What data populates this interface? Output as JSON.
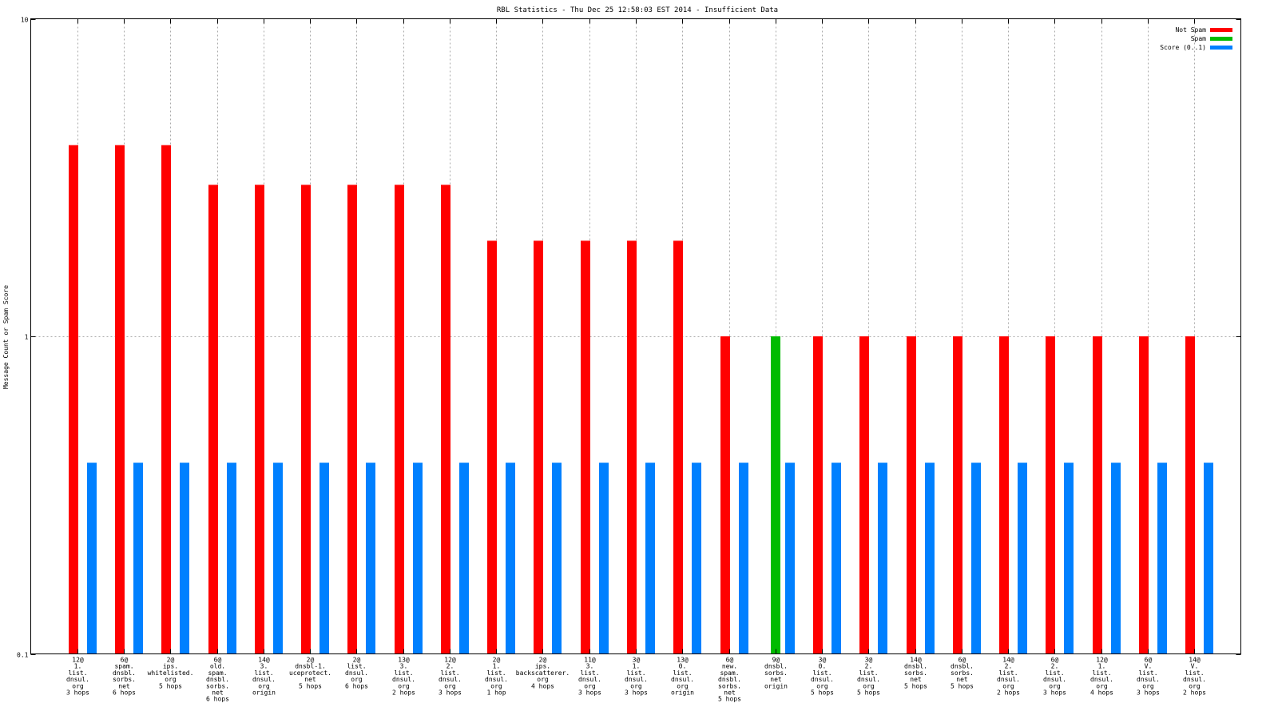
{
  "chart_data": {
    "type": "bar",
    "title": "RBL Statistics - Thu Dec 25 12:58:03 EST 2014 - Insufficient Data",
    "xlabel": "",
    "ylabel": "Message Count or Spam Score",
    "yscale": "log",
    "ylim": [
      0.1,
      10
    ],
    "yticks": [
      "0.1",
      "1",
      "10"
    ],
    "grid": true,
    "legend_position": "top-right",
    "categories": [
      [
        "12@",
        "1.",
        "list.",
        "dnsul.",
        "org",
        "3 hops"
      ],
      [
        "6@",
        "spam.",
        "dnsbl.",
        "sorbs.",
        "net",
        "6 hops"
      ],
      [
        "2@",
        "ips.",
        "whitelisted.",
        "org",
        "5 hops"
      ],
      [
        "6@",
        "old.",
        "spam.",
        "dnsbl.",
        "sorbs.",
        "net",
        "6 hops"
      ],
      [
        "14@",
        "3.",
        "list.",
        "dnsul.",
        "org",
        "origin"
      ],
      [
        "2@",
        "dnsbl-1.",
        "uceprotect.",
        "net",
        "5 hops"
      ],
      [
        "2@",
        "list.",
        "dnsul.",
        "org",
        "6 hops"
      ],
      [
        "13@",
        "3.",
        "list.",
        "dnsul.",
        "org",
        "2 hops"
      ],
      [
        "12@",
        "2.",
        "list.",
        "dnsul.",
        "org",
        "3 hops"
      ],
      [
        "2@",
        "1.",
        "list.",
        "dnsul.",
        "org",
        "1 hop"
      ],
      [
        "2@",
        "ips.",
        "backscatterer.",
        "org",
        "4 hops"
      ],
      [
        "11@",
        "3.",
        "list.",
        "dnsul.",
        "org",
        "3 hops"
      ],
      [
        "3@",
        "1.",
        "list.",
        "dnsul.",
        "org",
        "3 hops"
      ],
      [
        "13@",
        "0.",
        "list.",
        "dnsul.",
        "org",
        "origin"
      ],
      [
        "6@",
        "new.",
        "spam.",
        "dnsbl.",
        "sorbs.",
        "net",
        "5 hops"
      ],
      [
        "9@",
        "dnsbl.",
        "sorbs.",
        "net",
        "origin"
      ],
      [
        "3@",
        "0.",
        "list.",
        "dnsul.",
        "org",
        "5 hops"
      ],
      [
        "3@",
        "2.",
        "list.",
        "dnsul.",
        "org",
        "5 hops"
      ],
      [
        "14@",
        "dnsbl.",
        "sorbs.",
        "net",
        "5 hops"
      ],
      [
        "6@",
        "dnsbl.",
        "sorbs.",
        "net",
        "5 hops"
      ],
      [
        "14@",
        "2.",
        "list.",
        "dnsul.",
        "org",
        "2 hops"
      ],
      [
        "6@",
        "2.",
        "list.",
        "dnsul.",
        "org",
        "3 hops"
      ],
      [
        "12@",
        "1.",
        "list.",
        "dnsul.",
        "org",
        "4 hops"
      ],
      [
        "6@",
        "V.",
        "list.",
        "dnsul.",
        "org",
        "3 hops"
      ],
      [
        "14@",
        "V.",
        "list.",
        "dnsul.",
        "org",
        "2 hops"
      ]
    ],
    "series": [
      {
        "name": "Not Spam",
        "color": "#ff0000",
        "values": [
          4,
          4,
          4,
          3,
          3,
          3,
          3,
          3,
          3,
          2,
          2,
          2,
          2,
          2,
          1,
          0,
          1,
          1,
          1,
          1,
          1,
          1,
          1,
          1,
          1
        ]
      },
      {
        "name": "Spam",
        "color": "#00bb00",
        "values": [
          0,
          0,
          0,
          0,
          0,
          0,
          0,
          0,
          0,
          0,
          0,
          0,
          0,
          0,
          0,
          1,
          0,
          0,
          0,
          0,
          0,
          0,
          0,
          0,
          0
        ]
      },
      {
        "name": "Score (0..1)",
        "color": "#0080ff",
        "values": [
          0.4,
          0.4,
          0.4,
          0.4,
          0.4,
          0.4,
          0.4,
          0.4,
          0.4,
          0.4,
          0.4,
          0.4,
          0.4,
          0.4,
          0.4,
          0.4,
          0.4,
          0.4,
          0.4,
          0.4,
          0.4,
          0.4,
          0.4,
          0.4,
          0.4
        ]
      }
    ]
  }
}
